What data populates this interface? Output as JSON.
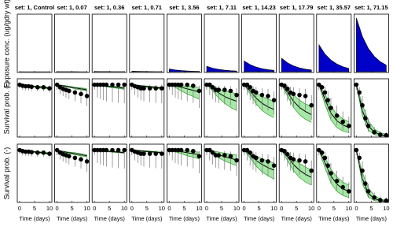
{
  "chart_data": {
    "type": "small-multiples",
    "xlabel": "Time (days)",
    "ylabels": [
      "Exposure conc. (ug/gdry wt)",
      "Survival prob. (-)",
      "Survival prob. (-)"
    ],
    "xlim": [
      0,
      10
    ],
    "xticks": [
      0,
      5,
      10
    ],
    "exposure_ylim": [
      0,
      75
    ],
    "survival_ylim": [
      0,
      1.1
    ],
    "model_time": [
      0,
      2,
      4,
      6,
      8,
      10
    ],
    "obs_time": [
      0,
      1,
      2,
      3,
      4,
      6,
      8,
      10
    ],
    "exposure_color": "#0000c8",
    "band_color": "#a6e8a6",
    "band_edge_color": "#2e9a2e",
    "model_color": "#000000",
    "obs_color": "#000000",
    "errorbar_color": "#777777",
    "panels": [
      {
        "title": "set: 1, Control",
        "exposure": [
          0,
          0,
          0,
          0,
          0,
          0
        ],
        "survival": [
          1,
          0.98,
          0.97,
          0.97,
          0.96,
          0.95,
          0.95,
          0.93
        ],
        "ci_low": [
          0.93,
          0.9,
          0.89,
          0.89,
          0.88,
          0.87,
          0.87,
          0.85
        ],
        "ci_high": [
          1,
          1,
          1,
          1,
          0.99,
          0.99,
          0.99,
          0.98
        ],
        "fits": [
          {
            "mid": [
              1,
              0.99,
              0.97,
              0.96,
              0.95,
              0.93
            ],
            "lo": [
              1,
              0.98,
              0.96,
              0.94,
              0.93,
              0.91
            ],
            "hi": [
              1,
              0.99,
              0.98,
              0.97,
              0.96,
              0.95
            ]
          },
          {
            "mid": [
              1,
              0.99,
              0.97,
              0.96,
              0.95,
              0.93
            ],
            "lo": [
              1,
              0.98,
              0.96,
              0.94,
              0.93,
              0.91
            ],
            "hi": [
              1,
              0.99,
              0.98,
              0.97,
              0.96,
              0.95
            ]
          }
        ]
      },
      {
        "title": "set: 1, 0.07",
        "exposure": [
          0.07,
          0.05,
          0.03,
          0.02,
          0.01,
          0.01
        ],
        "survival": [
          1,
          0.95,
          0.92,
          0.9,
          0.88,
          0.85,
          0.82,
          0.78
        ],
        "ci_low": [
          0.9,
          0.82,
          0.78,
          0.75,
          0.72,
          0.68,
          0.64,
          0.58
        ],
        "ci_high": [
          1,
          1,
          0.99,
          0.98,
          0.97,
          0.95,
          0.93,
          0.9
        ],
        "fits": [
          {
            "mid": [
              1,
              0.98,
              0.96,
              0.94,
              0.92,
              0.9
            ],
            "lo": [
              1,
              0.97,
              0.95,
              0.92,
              0.9,
              0.88
            ],
            "hi": [
              1,
              0.99,
              0.97,
              0.95,
              0.94,
              0.92
            ]
          },
          {
            "mid": [
              1,
              0.97,
              0.95,
              0.93,
              0.91,
              0.89
            ],
            "lo": [
              1,
              0.96,
              0.93,
              0.91,
              0.89,
              0.87
            ],
            "hi": [
              1,
              0.98,
              0.96,
              0.95,
              0.93,
              0.91
            ]
          }
        ]
      },
      {
        "title": "set: 1, 0.36",
        "exposure": [
          0.36,
          0.24,
          0.16,
          0.1,
          0.07,
          0.04
        ],
        "survival": [
          1,
          1,
          1,
          1,
          1,
          1,
          1,
          1
        ],
        "ci_low": [
          0.9,
          0.75,
          0.72,
          0.7,
          0.68,
          0.66,
          0.65,
          0.64
        ],
        "ci_high": [
          1,
          1,
          1,
          1,
          1,
          1,
          1,
          1
        ],
        "fits": [
          {
            "mid": [
              1,
              0.99,
              0.97,
              0.96,
              0.95,
              0.93
            ],
            "lo": [
              1,
              0.98,
              0.96,
              0.94,
              0.93,
              0.91
            ],
            "hi": [
              1,
              0.99,
              0.98,
              0.97,
              0.96,
              0.95
            ]
          },
          {
            "mid": [
              1,
              0.99,
              0.98,
              0.97,
              0.96,
              0.95
            ],
            "lo": [
              1,
              0.98,
              0.97,
              0.96,
              0.95,
              0.94
            ],
            "hi": [
              1,
              1,
              0.99,
              0.98,
              0.97,
              0.96
            ]
          }
        ]
      },
      {
        "title": "set: 1, 0.71",
        "exposure": [
          0.71,
          0.47,
          0.31,
          0.2,
          0.13,
          0.09
        ],
        "survival": [
          1,
          0.97,
          0.95,
          0.93,
          0.93,
          0.93,
          0.93,
          0.93
        ],
        "ci_low": [
          0.9,
          0.8,
          0.75,
          0.7,
          0.68,
          0.66,
          0.65,
          0.64
        ],
        "ci_high": [
          1,
          1,
          1,
          1,
          1,
          1,
          1,
          1
        ],
        "fits": [
          {
            "mid": [
              1,
              0.99,
              0.97,
              0.96,
              0.95,
              0.93
            ],
            "lo": [
              1,
              0.98,
              0.96,
              0.94,
              0.93,
              0.91
            ],
            "hi": [
              1,
              0.99,
              0.98,
              0.97,
              0.96,
              0.95
            ]
          },
          {
            "mid": [
              1,
              0.99,
              0.98,
              0.97,
              0.96,
              0.95
            ],
            "lo": [
              1,
              0.98,
              0.97,
              0.96,
              0.95,
              0.94
            ],
            "hi": [
              1,
              1,
              0.99,
              0.98,
              0.97,
              0.96
            ]
          }
        ]
      },
      {
        "title": "set: 1, 3.56",
        "exposure": [
          3.56,
          2.34,
          1.54,
          1.01,
          0.66,
          0.43
        ],
        "survival": [
          1,
          1,
          1,
          1,
          1,
          1,
          0.98,
          0.88
        ],
        "ci_low": [
          0.9,
          0.8,
          0.75,
          0.72,
          0.7,
          0.68,
          0.65,
          0.55
        ],
        "ci_high": [
          1,
          1,
          1,
          1,
          1,
          1,
          1,
          0.98
        ],
        "fits": [
          {
            "mid": [
              1,
              0.98,
              0.95,
              0.92,
              0.89,
              0.86
            ],
            "lo": [
              1,
              0.95,
              0.88,
              0.82,
              0.77,
              0.72
            ],
            "hi": [
              1,
              0.99,
              0.98,
              0.97,
              0.96,
              0.95
            ]
          },
          {
            "mid": [
              1,
              0.99,
              0.97,
              0.95,
              0.93,
              0.91
            ],
            "lo": [
              1,
              0.97,
              0.93,
              0.89,
              0.86,
              0.83
            ],
            "hi": [
              1,
              1,
              0.99,
              0.98,
              0.97,
              0.96
            ]
          }
        ]
      },
      {
        "title": "set: 1, 7.11",
        "exposure": [
          7.11,
          4.67,
          3.07,
          2.02,
          1.32,
          0.87
        ],
        "survival": [
          1,
          1,
          0.95,
          0.9,
          0.9,
          0.9,
          0.88,
          0.8
        ],
        "ci_low": [
          0.9,
          0.8,
          0.72,
          0.66,
          0.64,
          0.62,
          0.6,
          0.5
        ],
        "ci_high": [
          1,
          1,
          1,
          0.98,
          0.98,
          0.98,
          0.97,
          0.93
        ],
        "fits": [
          {
            "mid": [
              1,
              0.93,
              0.84,
              0.77,
              0.72,
              0.68
            ],
            "lo": [
              1,
              0.88,
              0.74,
              0.64,
              0.56,
              0.5
            ],
            "hi": [
              1,
              0.97,
              0.92,
              0.88,
              0.85,
              0.83
            ]
          },
          {
            "mid": [
              1,
              0.96,
              0.91,
              0.87,
              0.84,
              0.81
            ],
            "lo": [
              1,
              0.93,
              0.85,
              0.79,
              0.74,
              0.7
            ],
            "hi": [
              1,
              0.99,
              0.96,
              0.94,
              0.92,
              0.9
            ]
          }
        ]
      },
      {
        "title": "set: 1, 14.23",
        "exposure": [
          14.23,
          9.35,
          6.15,
          4.04,
          2.65,
          1.74
        ],
        "survival": [
          1,
          1,
          0.95,
          0.88,
          0.85,
          0.8,
          0.78,
          0.7
        ],
        "ci_low": [
          0.9,
          0.8,
          0.7,
          0.62,
          0.58,
          0.52,
          0.5,
          0.42
        ],
        "ci_high": [
          1,
          1,
          1,
          0.97,
          0.96,
          0.93,
          0.92,
          0.87
        ],
        "fits": [
          {
            "mid": [
              1,
              0.88,
              0.74,
              0.64,
              0.57,
              0.52
            ],
            "lo": [
              1,
              0.82,
              0.63,
              0.5,
              0.42,
              0.36
            ],
            "hi": [
              1,
              0.93,
              0.84,
              0.77,
              0.72,
              0.68
            ]
          },
          {
            "mid": [
              1,
              0.91,
              0.8,
              0.72,
              0.66,
              0.61
            ],
            "lo": [
              1,
              0.85,
              0.69,
              0.58,
              0.5,
              0.44
            ],
            "hi": [
              1,
              0.95,
              0.89,
              0.83,
              0.79,
              0.75
            ]
          }
        ]
      },
      {
        "title": "set: 1, 17.79",
        "exposure": [
          17.79,
          11.69,
          7.69,
          5.05,
          3.31,
          2.17
        ],
        "survival": [
          1,
          0.98,
          0.92,
          0.85,
          0.82,
          0.8,
          0.78,
          0.6
        ],
        "ci_low": [
          0.9,
          0.8,
          0.68,
          0.6,
          0.56,
          0.52,
          0.5,
          0.32
        ],
        "ci_high": [
          1,
          1,
          0.99,
          0.96,
          0.95,
          0.93,
          0.92,
          0.8
        ],
        "fits": [
          {
            "mid": [
              1,
              0.85,
              0.68,
              0.56,
              0.48,
              0.42
            ],
            "lo": [
              1,
              0.78,
              0.56,
              0.42,
              0.33,
              0.27
            ],
            "hi": [
              1,
              0.91,
              0.8,
              0.7,
              0.63,
              0.58
            ]
          },
          {
            "mid": [
              1,
              0.87,
              0.72,
              0.61,
              0.53,
              0.47
            ],
            "lo": [
              1,
              0.8,
              0.6,
              0.47,
              0.38,
              0.32
            ],
            "hi": [
              1,
              0.93,
              0.83,
              0.74,
              0.67,
              0.62
            ]
          }
        ]
      },
      {
        "title": "set: 1, 35.57",
        "exposure": [
          35.57,
          23.37,
          15.37,
          10.1,
          6.62,
          4.34
        ],
        "survival": [
          1,
          0.95,
          0.85,
          0.7,
          0.55,
          0.4,
          0.28,
          0.2
        ],
        "ci_low": [
          0.9,
          0.8,
          0.65,
          0.5,
          0.35,
          0.22,
          0.12,
          0.06
        ],
        "ci_high": [
          1,
          1,
          0.97,
          0.88,
          0.75,
          0.6,
          0.48,
          0.38
        ],
        "fits": [
          {
            "mid": [
              1,
              0.72,
              0.45,
              0.3,
              0.22,
              0.17
            ],
            "lo": [
              1,
              0.62,
              0.32,
              0.17,
              0.1,
              0.07
            ],
            "hi": [
              1,
              0.82,
              0.58,
              0.43,
              0.34,
              0.28
            ]
          },
          {
            "mid": [
              1,
              0.76,
              0.5,
              0.34,
              0.25,
              0.2
            ],
            "lo": [
              1,
              0.66,
              0.36,
              0.2,
              0.12,
              0.08
            ],
            "hi": [
              1,
              0.85,
              0.63,
              0.48,
              0.38,
              0.32
            ]
          }
        ]
      },
      {
        "title": "set: 1, 71.15",
        "exposure": [
          71.15,
          46.75,
          30.74,
          20.21,
          13.23,
          8.68
        ],
        "survival": [
          1,
          0.85,
          0.6,
          0.35,
          0.2,
          0.08,
          0.03,
          0.02
        ],
        "ci_low": [
          0.9,
          0.7,
          0.42,
          0.2,
          0.08,
          0.02,
          0,
          0
        ],
        "ci_high": [
          1,
          0.95,
          0.78,
          0.52,
          0.35,
          0.18,
          0.1,
          0.08
        ],
        "fits": [
          {
            "mid": [
              1,
              0.5,
              0.2,
              0.08,
              0.03,
              0.01
            ],
            "lo": [
              1,
              0.4,
              0.12,
              0.03,
              0.01,
              0
            ],
            "hi": [
              1,
              0.62,
              0.3,
              0.14,
              0.07,
              0.04
            ]
          },
          {
            "mid": [
              1,
              0.45,
              0.16,
              0.06,
              0.02,
              0.01
            ],
            "lo": [
              1,
              0.35,
              0.09,
              0.02,
              0.01,
              0
            ],
            "hi": [
              1,
              0.57,
              0.26,
              0.12,
              0.05,
              0.03
            ]
          }
        ]
      }
    ]
  }
}
